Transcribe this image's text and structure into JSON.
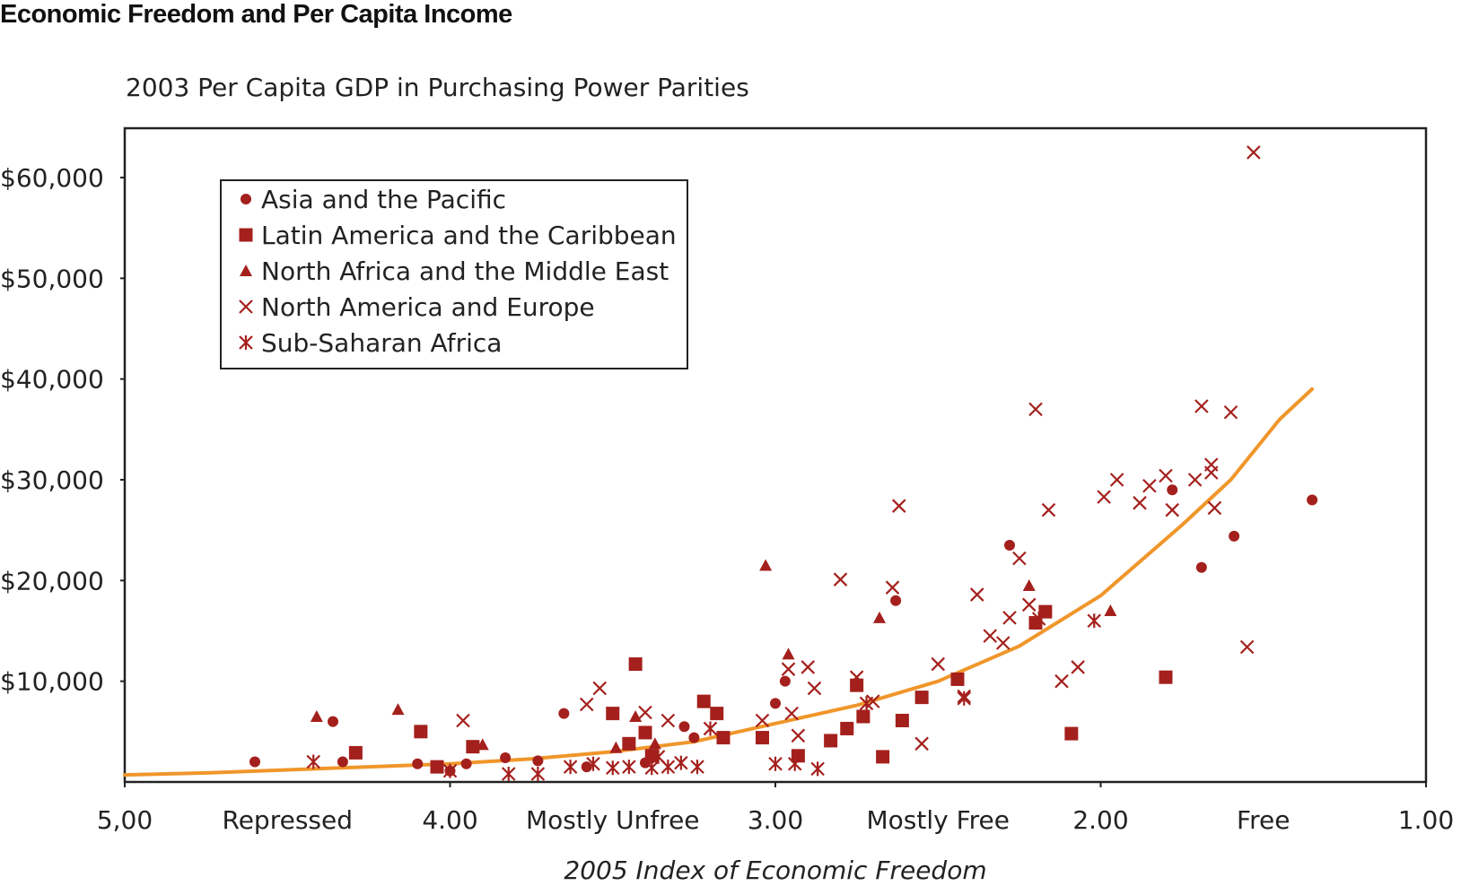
{
  "title": "Economic Freedom and Per Capita Income",
  "colors": {
    "marker": "#a4201c",
    "curve": "#f0962a",
    "frame": "#222222"
  },
  "chart_data": {
    "type": "scatter",
    "title": "Economic Freedom and Per Capita Income",
    "subtitle": "2003 Per Capita GDP in Purchasing Power Parities",
    "xlabel": "2005 Index of Economic Freedom",
    "ylabel": "",
    "x_reversed": true,
    "xlim": [
      5.0,
      1.0
    ],
    "ylim": [
      0,
      65000
    ],
    "x_ticks": [
      {
        "value": 5.0,
        "label": "5,00"
      },
      {
        "value": 4.0,
        "label": "4.00"
      },
      {
        "value": 3.0,
        "label": "3.00"
      },
      {
        "value": 2.0,
        "label": "2.00"
      },
      {
        "value": 1.0,
        "label": "1.00"
      }
    ],
    "x_categories": [
      {
        "value": 4.5,
        "label": "Repressed"
      },
      {
        "value": 3.5,
        "label": "Mostly Unfree"
      },
      {
        "value": 2.5,
        "label": "Mostly Free"
      },
      {
        "value": 1.5,
        "label": "Free"
      }
    ],
    "y_ticks": [
      {
        "value": 10000,
        "label": "$10,000"
      },
      {
        "value": 20000,
        "label": "$20,000"
      },
      {
        "value": 30000,
        "label": "$30,000"
      },
      {
        "value": 40000,
        "label": "$40,000"
      },
      {
        "value": 50000,
        "label": "$50,000"
      },
      {
        "value": 60000,
        "label": "$60,000"
      }
    ],
    "grid": false,
    "legend_position": "top-left",
    "trend_line": {
      "type": "exponential fit",
      "x": [
        5.0,
        4.75,
        4.5,
        4.25,
        4.0,
        3.75,
        3.5,
        3.25,
        3.0,
        2.75,
        2.5,
        2.25,
        2.0,
        1.75,
        1.6,
        1.45,
        1.35
      ],
      "y": [
        700,
        900,
        1200,
        1500,
        1800,
        2300,
        3000,
        4000,
        5800,
        7600,
        10000,
        13500,
        18500,
        25500,
        30000,
        36000,
        39000
      ]
    },
    "series": [
      {
        "name": "Asia and the Pacific",
        "marker": "circle",
        "points": [
          [
            4.6,
            2000
          ],
          [
            4.36,
            6000
          ],
          [
            4.33,
            2000
          ],
          [
            4.1,
            1800
          ],
          [
            4.0,
            1100
          ],
          [
            3.95,
            1800
          ],
          [
            3.83,
            2400
          ],
          [
            3.73,
            2100
          ],
          [
            3.65,
            6800
          ],
          [
            3.58,
            1500
          ],
          [
            3.4,
            1900
          ],
          [
            3.28,
            5500
          ],
          [
            3.25,
            4400
          ],
          [
            3.0,
            7800
          ],
          [
            2.97,
            10000
          ],
          [
            2.63,
            18000
          ],
          [
            2.28,
            23500
          ],
          [
            1.78,
            29000
          ],
          [
            1.69,
            21300
          ],
          [
            1.59,
            24400
          ],
          [
            1.35,
            28000
          ]
        ]
      },
      {
        "name": "Latin America and the Caribbean",
        "marker": "square",
        "points": [
          [
            4.29,
            2900
          ],
          [
            4.09,
            5000
          ],
          [
            4.04,
            1500
          ],
          [
            3.93,
            3500
          ],
          [
            3.5,
            6800
          ],
          [
            3.45,
            3800
          ],
          [
            3.43,
            11700
          ],
          [
            3.4,
            4900
          ],
          [
            3.38,
            2600
          ],
          [
            3.22,
            8000
          ],
          [
            3.18,
            6800
          ],
          [
            3.16,
            4400
          ],
          [
            3.04,
            4400
          ],
          [
            2.93,
            2600
          ],
          [
            2.83,
            4100
          ],
          [
            2.78,
            5300
          ],
          [
            2.75,
            9600
          ],
          [
            2.73,
            6500
          ],
          [
            2.67,
            2500
          ],
          [
            2.61,
            6100
          ],
          [
            2.55,
            8400
          ],
          [
            2.44,
            10200
          ],
          [
            2.2,
            15800
          ],
          [
            2.17,
            16900
          ],
          [
            2.09,
            4800
          ],
          [
            1.8,
            10400
          ]
        ]
      },
      {
        "name": "North Africa and the Middle East",
        "marker": "triangle",
        "points": [
          [
            4.41,
            6500
          ],
          [
            4.16,
            7200
          ],
          [
            3.9,
            3700
          ],
          [
            3.49,
            3400
          ],
          [
            3.43,
            6500
          ],
          [
            3.37,
            3800
          ],
          [
            3.03,
            21500
          ],
          [
            2.96,
            12700
          ],
          [
            2.68,
            16300
          ],
          [
            2.22,
            19500
          ],
          [
            1.97,
            17000
          ]
        ]
      },
      {
        "name": "North America and Europe",
        "marker": "x",
        "points": [
          [
            3.96,
            6100
          ],
          [
            3.54,
            9300
          ],
          [
            3.58,
            7700
          ],
          [
            3.4,
            6900
          ],
          [
            3.33,
            6100
          ],
          [
            3.04,
            6100
          ],
          [
            2.96,
            11200
          ],
          [
            2.9,
            11400
          ],
          [
            2.88,
            9300
          ],
          [
            2.95,
            6800
          ],
          [
            2.93,
            4600
          ],
          [
            2.8,
            20100
          ],
          [
            2.75,
            10400
          ],
          [
            2.7,
            8000
          ],
          [
            2.64,
            19300
          ],
          [
            2.62,
            27400
          ],
          [
            2.5,
            11700
          ],
          [
            2.55,
            3800
          ],
          [
            2.38,
            18600
          ],
          [
            2.34,
            14500
          ],
          [
            2.3,
            13800
          ],
          [
            2.28,
            16300
          ],
          [
            2.25,
            22200
          ],
          [
            2.22,
            17600
          ],
          [
            2.2,
            37000
          ],
          [
            2.16,
            27000
          ],
          [
            2.12,
            10000
          ],
          [
            2.07,
            11400
          ],
          [
            1.99,
            28300
          ],
          [
            1.95,
            30000
          ],
          [
            1.88,
            27700
          ],
          [
            1.85,
            29400
          ],
          [
            1.8,
            30400
          ],
          [
            1.78,
            27000
          ],
          [
            1.71,
            30000
          ],
          [
            1.69,
            37300
          ],
          [
            1.66,
            31500
          ],
          [
            1.66,
            30700
          ],
          [
            1.65,
            27200
          ],
          [
            1.6,
            36700
          ],
          [
            1.55,
            13400
          ],
          [
            1.53,
            62500
          ],
          [
            2.42,
            8500
          ]
        ]
      },
      {
        "name": "Sub-Saharan Africa",
        "marker": "asterisk",
        "points": [
          [
            4.42,
            2000
          ],
          [
            4.0,
            1100
          ],
          [
            3.82,
            800
          ],
          [
            3.73,
            800
          ],
          [
            3.63,
            1500
          ],
          [
            3.56,
            1800
          ],
          [
            3.5,
            1400
          ],
          [
            3.45,
            1500
          ],
          [
            3.38,
            1400
          ],
          [
            3.36,
            2500
          ],
          [
            3.33,
            1500
          ],
          [
            3.29,
            1900
          ],
          [
            3.24,
            1500
          ],
          [
            3.2,
            5300
          ],
          [
            3.0,
            1800
          ],
          [
            2.94,
            1800
          ],
          [
            2.87,
            1300
          ],
          [
            2.72,
            7800
          ],
          [
            2.42,
            8300
          ],
          [
            2.19,
            16200
          ],
          [
            2.02,
            16000
          ]
        ]
      }
    ]
  }
}
